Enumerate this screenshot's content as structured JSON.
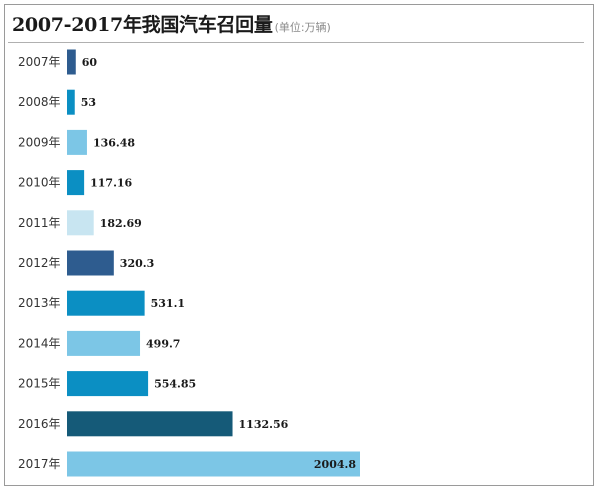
{
  "header": {
    "title": "2007-2017年我国汽车召回量",
    "unit": "(单位:万辆)"
  },
  "colors": {
    "dark_blue": "#2e5c8f",
    "mid_blue": "#0b8fc3",
    "light_blue": "#7cc6e6",
    "pale_blue": "#c8e5f1",
    "deep_teal": "#155a78"
  },
  "chart_data": {
    "type": "bar",
    "orientation": "horizontal",
    "title": "2007-2017年我国汽车召回量",
    "unit": "(单位:万辆)",
    "categories": [
      "2007年",
      "2008年",
      "2009年",
      "2010年",
      "2011年",
      "2012年",
      "2013年",
      "2014年",
      "2015年",
      "2016年",
      "2017年"
    ],
    "values": [
      60,
      53,
      136.48,
      117.16,
      182.69,
      320.3,
      531.1,
      499.7,
      554.85,
      1132.56,
      2004.8
    ],
    "value_labels": [
      "60",
      "53",
      "136.48",
      "117.16",
      "182.69",
      "320.3",
      "531.1",
      "499.7",
      "554.85",
      "1132.56",
      "2004.8"
    ],
    "bar_colors": [
      "#2e5c8f",
      "#0b8fc3",
      "#7cc6e6",
      "#0b8fc3",
      "#c8e5f1",
      "#2e5c8f",
      "#0b8fc3",
      "#7cc6e6",
      "#0b8fc3",
      "#155a78",
      "#7cc6e6"
    ],
    "xlim": [
      0,
      2004.8
    ],
    "grid": false,
    "legend": "none"
  }
}
